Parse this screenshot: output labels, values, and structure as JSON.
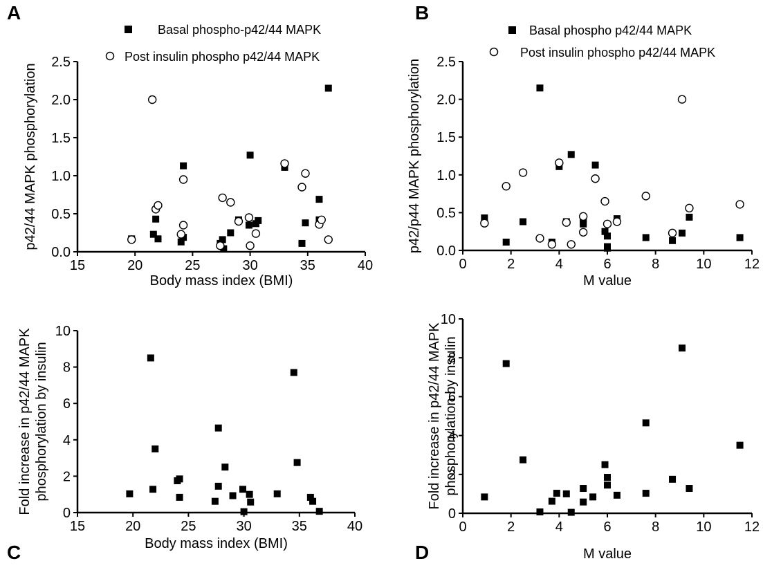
{
  "chart_data": [
    {
      "panel": "A",
      "type": "scatter",
      "xlabel": "Body mass index (BMI)",
      "ylabel": "p42/44 MAPK phosphorylation",
      "xlim": [
        15,
        40
      ],
      "ylim": [
        0,
        2.5
      ],
      "xticks": [
        15,
        20,
        25,
        30,
        35,
        40
      ],
      "yticks": [
        "0.0",
        "0.5",
        "1.0",
        "1.5",
        "2.0",
        "2.5"
      ],
      "legend_position": "top",
      "series": [
        {
          "name": "Basal phospho-p42/44 MAPK",
          "marker": "square-filled",
          "points": [
            [
              19.7,
              0.17
            ],
            [
              21.6,
              0.23
            ],
            [
              21.8,
              0.43
            ],
            [
              22.0,
              0.17
            ],
            [
              24.0,
              0.13
            ],
            [
              24.2,
              0.19
            ],
            [
              24.2,
              1.13
            ],
            [
              27.4,
              0.11
            ],
            [
              27.6,
              0.16
            ],
            [
              27.7,
              0.04
            ],
            [
              28.3,
              0.25
            ],
            [
              29.0,
              0.42
            ],
            [
              29.9,
              0.35
            ],
            [
              30.0,
              1.27
            ],
            [
              30.5,
              0.37
            ],
            [
              30.7,
              0.41
            ],
            [
              33.0,
              1.11
            ],
            [
              34.5,
              0.11
            ],
            [
              34.8,
              0.38
            ],
            [
              36.0,
              0.69
            ],
            [
              36.0,
              0.42
            ],
            [
              36.8,
              2.15
            ]
          ]
        },
        {
          "name": "Post insulin phospho p42/44 MAPK",
          "marker": "circle-open",
          "points": [
            [
              19.7,
              0.16
            ],
            [
              21.5,
              2.0
            ],
            [
              21.8,
              0.56
            ],
            [
              22.0,
              0.61
            ],
            [
              24.0,
              0.23
            ],
            [
              24.2,
              0.95
            ],
            [
              24.2,
              0.35
            ],
            [
              27.4,
              0.08
            ],
            [
              27.6,
              0.71
            ],
            [
              28.3,
              0.65
            ],
            [
              29.0,
              0.4
            ],
            [
              29.9,
              0.45
            ],
            [
              30.0,
              0.08
            ],
            [
              30.5,
              0.24
            ],
            [
              33.0,
              1.16
            ],
            [
              34.5,
              0.85
            ],
            [
              34.8,
              1.03
            ],
            [
              36.0,
              0.36
            ],
            [
              36.2,
              0.42
            ],
            [
              36.8,
              0.16
            ]
          ]
        }
      ]
    },
    {
      "panel": "B",
      "type": "scatter",
      "xlabel": "M value",
      "ylabel": "p42/p44 MAPK phosphorylation",
      "xlim": [
        0,
        12
      ],
      "ylim": [
        0,
        2.5
      ],
      "xticks": [
        0,
        2,
        4,
        6,
        8,
        10,
        12
      ],
      "yticks": [
        "0.0",
        "0.5",
        "1.0",
        "1.5",
        "2.0",
        "2.5"
      ],
      "legend_position": "top",
      "series": [
        {
          "name": "Basal phospho p42/44 MAPK",
          "marker": "square-filled",
          "points": [
            [
              0.9,
              0.43
            ],
            [
              1.8,
              0.11
            ],
            [
              2.5,
              0.38
            ],
            [
              3.2,
              2.15
            ],
            [
              3.7,
              0.11
            ],
            [
              4.0,
              1.11
            ],
            [
              4.3,
              0.38
            ],
            [
              4.5,
              1.27
            ],
            [
              5.0,
              0.42
            ],
            [
              5.0,
              0.37
            ],
            [
              5.0,
              0.35
            ],
            [
              5.5,
              1.13
            ],
            [
              5.9,
              0.25
            ],
            [
              6.0,
              0.19
            ],
            [
              6.0,
              0.05
            ],
            [
              6.0,
              0.03
            ],
            [
              6.4,
              0.42
            ],
            [
              7.6,
              0.17
            ],
            [
              8.7,
              0.13
            ],
            [
              9.1,
              0.23
            ],
            [
              9.4,
              0.44
            ],
            [
              11.5,
              0.17
            ]
          ]
        },
        {
          "name": "Post insulin phospho p42/44 MAPK",
          "marker": "circle-open",
          "points": [
            [
              0.9,
              0.36
            ],
            [
              1.8,
              0.85
            ],
            [
              2.5,
              1.03
            ],
            [
              3.2,
              0.16
            ],
            [
              3.7,
              0.08
            ],
            [
              4.0,
              1.16
            ],
            [
              4.3,
              0.37
            ],
            [
              4.5,
              0.08
            ],
            [
              5.0,
              0.45
            ],
            [
              5.0,
              0.24
            ],
            [
              5.5,
              0.95
            ],
            [
              5.9,
              0.65
            ],
            [
              6.0,
              0.35
            ],
            [
              6.4,
              0.38
            ],
            [
              7.6,
              0.72
            ],
            [
              8.7,
              0.23
            ],
            [
              9.1,
              2.0
            ],
            [
              9.4,
              0.56
            ],
            [
              11.5,
              0.61
            ]
          ]
        }
      ]
    },
    {
      "panel": "C",
      "type": "scatter",
      "xlabel": "Body mass index (BMI)",
      "ylabel": [
        "Fold increase in p42/44 MAPK",
        "phosphorylation by insulin"
      ],
      "xlim": [
        15,
        40
      ],
      "ylim": [
        0,
        10
      ],
      "xticks": [
        15,
        20,
        25,
        30,
        35,
        40
      ],
      "yticks": [
        "0",
        "2",
        "4",
        "6",
        "8",
        "10"
      ],
      "series": [
        {
          "marker": "square-filled",
          "points": [
            [
              19.7,
              1.03
            ],
            [
              21.6,
              8.5
            ],
            [
              21.8,
              1.28
            ],
            [
              22.0,
              3.5
            ],
            [
              24.0,
              1.75
            ],
            [
              24.2,
              1.85
            ],
            [
              24.2,
              0.84
            ],
            [
              27.4,
              0.62
            ],
            [
              27.7,
              4.65
            ],
            [
              27.7,
              1.45
            ],
            [
              28.3,
              2.5
            ],
            [
              29.0,
              0.93
            ],
            [
              29.9,
              1.28
            ],
            [
              30.0,
              0.05
            ],
            [
              30.5,
              1.0
            ],
            [
              30.6,
              0.58
            ],
            [
              33.0,
              1.03
            ],
            [
              34.5,
              7.7
            ],
            [
              34.8,
              2.75
            ],
            [
              36.0,
              0.84
            ],
            [
              36.2,
              0.62
            ],
            [
              36.8,
              0.07
            ]
          ]
        }
      ]
    },
    {
      "panel": "D",
      "type": "scatter",
      "xlabel": "M value",
      "ylabel": [
        "Fold increase in p42/44 MAPK",
        "phosphorylation by insulin"
      ],
      "xlim": [
        0,
        12
      ],
      "ylim": [
        0,
        10
      ],
      "xticks": [
        0,
        2,
        4,
        6,
        8,
        10,
        12
      ],
      "yticks": [
        "0",
        "2",
        "4",
        "6",
        "8",
        "10"
      ],
      "series": [
        {
          "marker": "square-filled",
          "points": [
            [
              0.9,
              0.84
            ],
            [
              1.8,
              7.7
            ],
            [
              2.5,
              2.75
            ],
            [
              3.2,
              0.07
            ],
            [
              3.7,
              0.62
            ],
            [
              3.9,
              1.03
            ],
            [
              4.3,
              1.0
            ],
            [
              4.5,
              0.05
            ],
            [
              5.0,
              1.28
            ],
            [
              5.0,
              0.58
            ],
            [
              5.4,
              0.84
            ],
            [
              5.9,
              2.5
            ],
            [
              6.0,
              1.85
            ],
            [
              6.0,
              1.45
            ],
            [
              6.4,
              0.93
            ],
            [
              7.6,
              4.65
            ],
            [
              7.6,
              1.03
            ],
            [
              8.7,
              1.75
            ],
            [
              9.1,
              8.5
            ],
            [
              9.4,
              1.28
            ],
            [
              11.5,
              3.5
            ]
          ]
        }
      ]
    }
  ]
}
